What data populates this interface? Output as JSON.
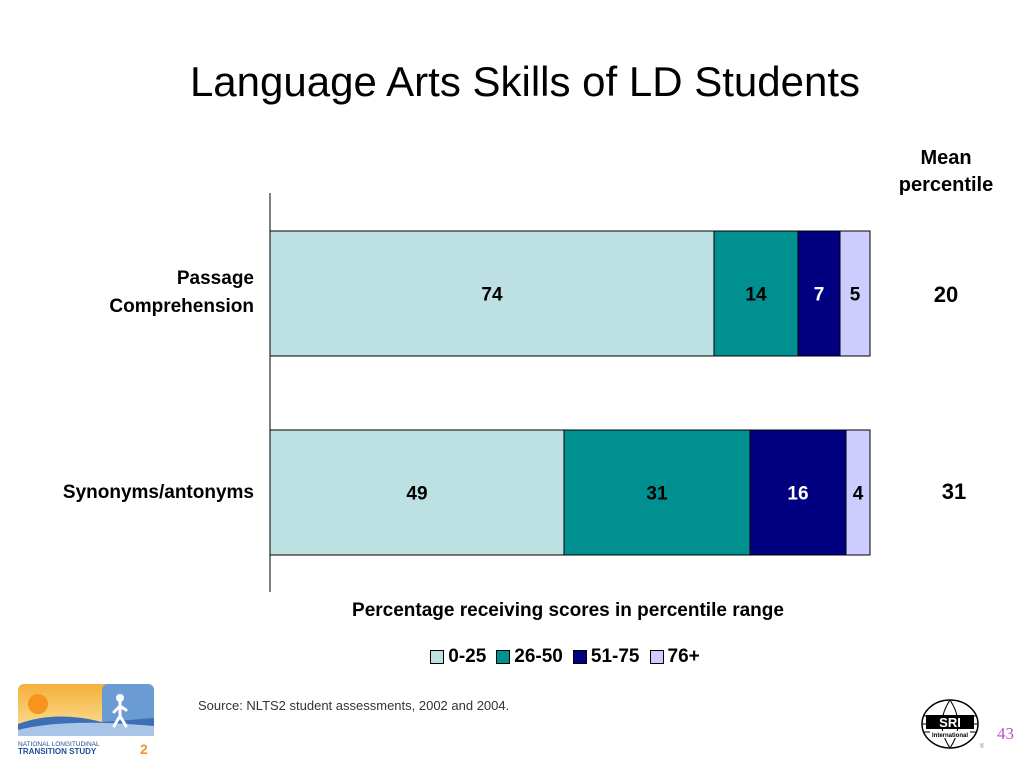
{
  "slide": {
    "title": "Language Arts Skills of LD Students",
    "mean_header_line1": "Mean",
    "mean_header_line2": "percentile",
    "source": "Source: NLTS2 student assessments, 2002 and 2004.",
    "page_number": "43"
  },
  "logos": {
    "nlts2_line1": "NATIONAL LONGITUDINAL",
    "nlts2_line2": "TRANSITION STUDY",
    "nlts2_number": "2",
    "sri_text": "SRI",
    "sri_sub": "International"
  },
  "chart_data": {
    "type": "bar",
    "orientation": "horizontal",
    "stacked": true,
    "categories": [
      "Passage Comprehension",
      "Synonyms/antonyms"
    ],
    "category_label_lines": [
      [
        "Passage",
        "Comprehension"
      ],
      [
        "Synonyms/antonyms"
      ]
    ],
    "series": [
      {
        "name": "0-25",
        "values": [
          74,
          49
        ],
        "color": "#bde0e3",
        "label_color": "#000000"
      },
      {
        "name": "26-50",
        "values": [
          14,
          31
        ],
        "color": "#009090",
        "label_color": "#000000"
      },
      {
        "name": "51-75",
        "values": [
          7,
          16
        ],
        "color": "#000080",
        "label_color": "#ffffff"
      },
      {
        "name": "76+",
        "values": [
          5,
          4
        ],
        "color": "#ccccff",
        "label_color": "#000000"
      }
    ],
    "mean_percentile": [
      "20",
      "31"
    ],
    "xlabel": "Percentage receiving scores in percentile range",
    "xlim": [
      0,
      100
    ],
    "legend_position": "bottom"
  }
}
